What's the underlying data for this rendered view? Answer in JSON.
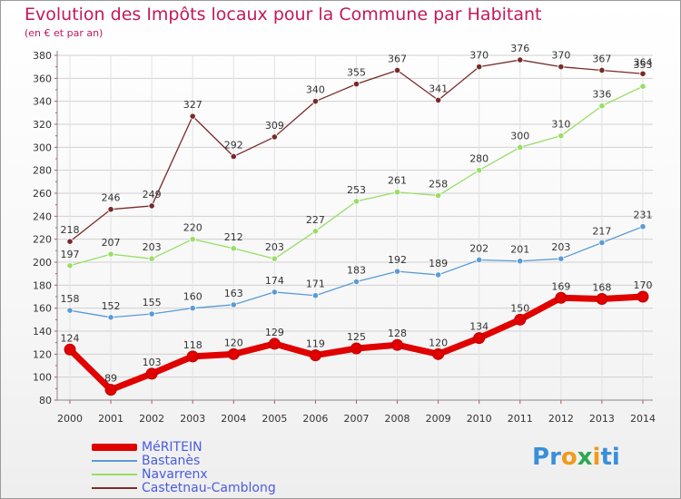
{
  "header": {
    "title": "Evolution des Impôts locaux pour la Commune par Habitant",
    "subtitle": "(en € et par an)"
  },
  "logo": {
    "text": "Proxiti",
    "letters": [
      "P",
      "r",
      "o",
      "x",
      "i",
      "t",
      "i"
    ],
    "colors": [
      "#3a8fd9",
      "#3a8fd9",
      "#f29a1a",
      "#2ea84f",
      "#f29a1a",
      "#3a8fd9",
      "#3a8fd9"
    ]
  },
  "chart_data": {
    "type": "line",
    "title": "Evolution des Impôts locaux pour la Commune par Habitant",
    "ylabel": "(en € et par an)",
    "xlabel": "",
    "x": [
      "2000",
      "2001",
      "2002",
      "2003",
      "2004",
      "2005",
      "2006",
      "2007",
      "2008",
      "2009",
      "2010",
      "2011",
      "2012",
      "2013",
      "2014"
    ],
    "ylim": [
      80,
      380
    ],
    "yticks": [
      80,
      100,
      120,
      140,
      160,
      180,
      200,
      220,
      240,
      260,
      280,
      300,
      320,
      340,
      360,
      380
    ],
    "grid": true,
    "series": [
      {
        "name": "MéRITEIN",
        "color": "#e00000",
        "width": 7,
        "values": [
          124,
          89,
          103,
          118,
          120,
          129,
          119,
          125,
          128,
          120,
          134,
          150,
          169,
          168,
          170
        ]
      },
      {
        "name": "Bastanès",
        "color": "#5b9bd5",
        "width": 1.3,
        "values": [
          158,
          152,
          155,
          160,
          163,
          174,
          171,
          183,
          192,
          189,
          202,
          201,
          203,
          217,
          231
        ]
      },
      {
        "name": "Navarrenx",
        "color": "#99dd66",
        "width": 1.3,
        "values": [
          197,
          207,
          203,
          220,
          212,
          203,
          227,
          253,
          261,
          258,
          280,
          300,
          310,
          336,
          353
        ]
      },
      {
        "name": "Castetnau-Camblong",
        "color": "#7a2a2a",
        "width": 1.3,
        "values": [
          218,
          246,
          249,
          327,
          292,
          309,
          340,
          355,
          367,
          341,
          370,
          376,
          370,
          367,
          364
        ]
      }
    ]
  }
}
